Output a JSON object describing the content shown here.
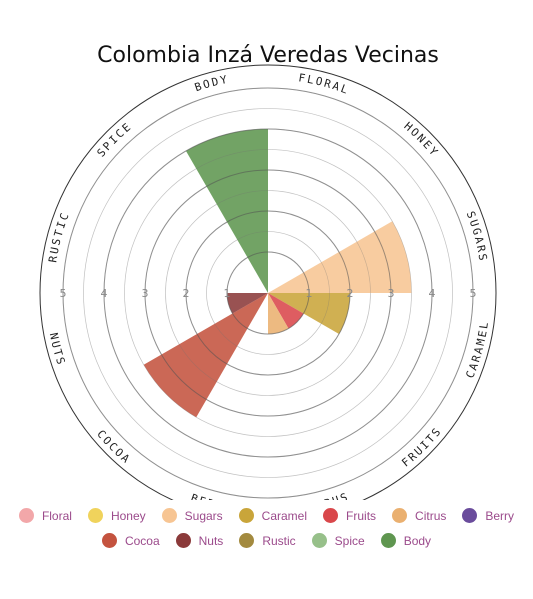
{
  "chart_data": {
    "type": "polar-area",
    "title": "Colombia Inzá Veredas Vecinas",
    "rlim": [
      0,
      5
    ],
    "tick_labels": [
      "1",
      "2",
      "3",
      "4",
      "5"
    ],
    "categories": [
      "Floral",
      "Honey",
      "Sugars",
      "Caramel",
      "Fruits",
      "Citrus",
      "Berry",
      "Cocoa",
      "Nuts",
      "Rustic",
      "Spice",
      "Body"
    ],
    "axis_labels": [
      "FLORAL",
      "HONEY",
      "SUGARS",
      "CARAMEL",
      "FRUITS",
      "CITRUS",
      "BERRY",
      "COCOA",
      "NUTS",
      "RUSTIC",
      "SPICE",
      "BODY"
    ],
    "values": [
      0,
      0,
      3.5,
      2,
      1,
      1,
      0,
      3.5,
      1,
      0,
      0,
      4
    ],
    "colors": [
      "#f2a7a9",
      "#f0d35c",
      "#f7c593",
      "#c9a53a",
      "#d9474b",
      "#eab070",
      "#6a4c9c",
      "#c4533f",
      "#8b3a3a",
      "#a38a3f",
      "#97c08a",
      "#5f9650"
    ],
    "grid": true,
    "legend_position": "bottom"
  },
  "legend": [
    {
      "label": "Floral",
      "color": "#f2a7a9"
    },
    {
      "label": "Honey",
      "color": "#f0d35c"
    },
    {
      "label": "Sugars",
      "color": "#f7c593"
    },
    {
      "label": "Caramel",
      "color": "#c9a53a"
    },
    {
      "label": "Fruits",
      "color": "#d9474b"
    },
    {
      "label": "Citrus",
      "color": "#eab070"
    },
    {
      "label": "Berry",
      "color": "#6a4c9c"
    },
    {
      "label": "Cocoa",
      "color": "#c4533f"
    },
    {
      "label": "Nuts",
      "color": "#8b3a3a"
    },
    {
      "label": "Rustic",
      "color": "#a38a3f"
    },
    {
      "label": "Spice",
      "color": "#97c08a"
    },
    {
      "label": "Body",
      "color": "#5f9650"
    }
  ]
}
